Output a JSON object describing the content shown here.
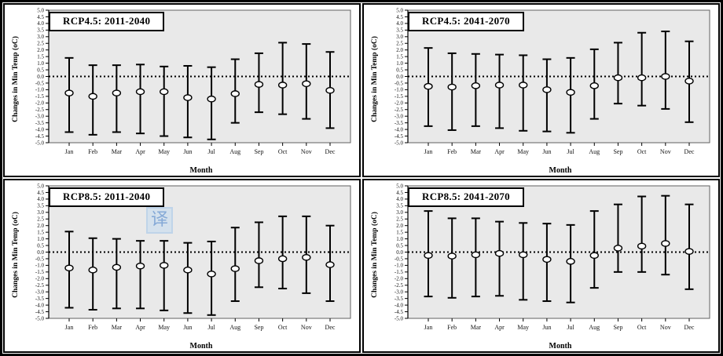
{
  "figure": {
    "watermark_text": "译"
  },
  "chart_data": [
    {
      "type": "errorbar",
      "title": "RCP4.5: 2011-2040",
      "xlabel": "Month",
      "ylabel": "Changes in Min Temp (oC)",
      "ylim": [
        -5.0,
        5.0
      ],
      "ytick_step": 0.5,
      "zero_line": "dotted",
      "categories": [
        "Jan",
        "Feb",
        "Mar",
        "Apr",
        "May",
        "Jun",
        "Jul",
        "Aug",
        "Sep",
        "Oct",
        "Nov",
        "Dec"
      ],
      "means": [
        -1.25,
        -1.5,
        -1.25,
        -1.15,
        -1.15,
        -1.6,
        -1.7,
        -1.3,
        -0.6,
        -0.65,
        -0.55,
        -1.05
      ],
      "lows": [
        -4.2,
        -4.4,
        -4.2,
        -4.3,
        -4.5,
        -4.6,
        -4.75,
        -3.5,
        -2.7,
        -2.85,
        -3.2,
        -3.9
      ],
      "highs": [
        1.4,
        0.85,
        0.85,
        0.9,
        0.75,
        0.8,
        0.7,
        1.3,
        1.75,
        2.55,
        2.45,
        1.85
      ]
    },
    {
      "type": "errorbar",
      "title": "RCP4.5: 2041-2070",
      "xlabel": "Month",
      "ylabel": "Changes in Min Temp (oC)",
      "ylim": [
        -5.0,
        5.0
      ],
      "ytick_step": 0.5,
      "zero_line": "dotted",
      "categories": [
        "Jan",
        "Feb",
        "Mar",
        "Apr",
        "May",
        "Jun",
        "Jul",
        "Aug",
        "Sep",
        "Oct",
        "Nov",
        "Dec"
      ],
      "means": [
        -0.75,
        -0.8,
        -0.7,
        -0.65,
        -0.65,
        -1.0,
        -1.2,
        -0.7,
        -0.1,
        -0.1,
        0.0,
        -0.35
      ],
      "lows": [
        -3.75,
        -4.05,
        -3.75,
        -3.9,
        -4.1,
        -4.15,
        -4.25,
        -3.2,
        -2.05,
        -2.2,
        -2.45,
        -3.45
      ],
      "highs": [
        2.15,
        1.75,
        1.7,
        1.65,
        1.6,
        1.3,
        1.4,
        2.05,
        2.55,
        3.3,
        3.4,
        2.65
      ]
    },
    {
      "type": "errorbar",
      "title": "RCP8.5: 2011-2040",
      "xlabel": "Month",
      "ylabel": "Changes in Min Temp (oC)",
      "ylim": [
        -5.0,
        5.0
      ],
      "ytick_step": 0.5,
      "zero_line": "dotted",
      "categories": [
        "Jan",
        "Feb",
        "Mar",
        "Apr",
        "May",
        "Jun",
        "Jul",
        "Aug",
        "Sep",
        "Oct",
        "Nov",
        "Dec"
      ],
      "means": [
        -1.2,
        -1.35,
        -1.15,
        -1.05,
        -1.0,
        -1.35,
        -1.65,
        -1.25,
        -0.65,
        -0.5,
        -0.4,
        -0.95
      ],
      "lows": [
        -4.2,
        -4.35,
        -4.25,
        -4.25,
        -4.4,
        -4.6,
        -4.75,
        -3.7,
        -2.65,
        -2.75,
        -3.1,
        -3.7
      ],
      "highs": [
        1.55,
        1.05,
        1.0,
        0.85,
        0.85,
        0.7,
        0.8,
        1.85,
        2.25,
        2.7,
        2.7,
        2.0
      ]
    },
    {
      "type": "errorbar",
      "title": "RCP8.5: 2041-2070",
      "xlabel": "Month",
      "ylabel": "Changes in Min Temp (oC)",
      "ylim": [
        -5.0,
        5.0
      ],
      "ytick_step": 0.5,
      "zero_line": "dotted",
      "categories": [
        "Jan",
        "Feb",
        "Mar",
        "Apr",
        "May",
        "Jun",
        "Jul",
        "Aug",
        "Sep",
        "Oct",
        "Nov",
        "Dec"
      ],
      "means": [
        -0.25,
        -0.3,
        -0.2,
        -0.1,
        -0.2,
        -0.55,
        -0.7,
        -0.25,
        0.3,
        0.45,
        0.65,
        0.05
      ],
      "lows": [
        -3.35,
        -3.45,
        -3.35,
        -3.3,
        -3.6,
        -3.7,
        -3.8,
        -2.7,
        -1.5,
        -1.5,
        -1.7,
        -2.8
      ],
      "highs": [
        3.1,
        2.55,
        2.55,
        2.3,
        2.2,
        2.15,
        2.05,
        3.1,
        3.6,
        4.2,
        4.25,
        3.6
      ]
    }
  ],
  "colors": {
    "plot_background": "#e9e9e9",
    "plot_border": "#606060",
    "data": "#000000",
    "marker_fill": "#ffffff"
  }
}
